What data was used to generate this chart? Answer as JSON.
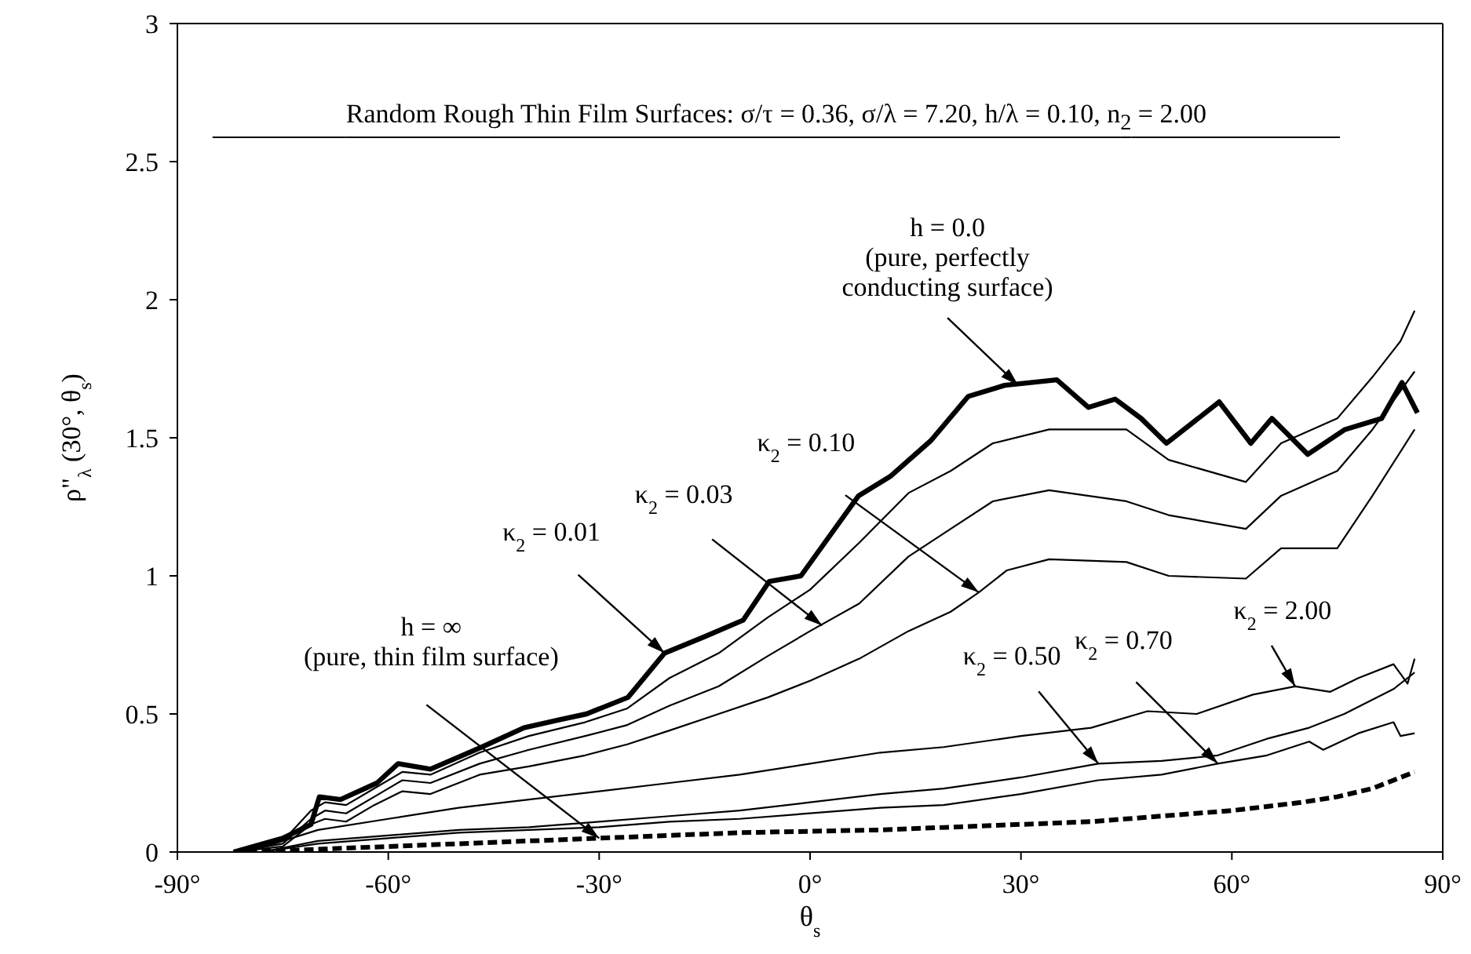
{
  "chart_data": {
    "type": "line",
    "title": "Random Rough Thin Film Surfaces: σ/τ = 0.36, σ/λ = 7.20, h/λ = 0.10, n$_{2}$ = 2.00",
    "xlabel": "θ$_{s}$",
    "ylabel": "ρ\"$_{λ}$ (30°, θ$_{s}$)",
    "xlim": [
      -90,
      90
    ],
    "xticks": [
      {
        "value": -90,
        "label": "-90°"
      },
      {
        "value": -60,
        "label": "-60°"
      },
      {
        "value": -30,
        "label": "-30°"
      },
      {
        "value": 0,
        "label": "0°"
      },
      {
        "value": 30,
        "label": "30°"
      },
      {
        "value": 60,
        "label": "60°"
      },
      {
        "value": 90,
        "label": "90°"
      }
    ],
    "ylim": [
      0,
      3
    ],
    "yticks": [
      0,
      0.5,
      1,
      1.5,
      2,
      2.5,
      3
    ],
    "grid": false,
    "legend": false,
    "marker": "none",
    "series": [
      {
        "color": "#000000",
        "x": [
          -82,
          -75,
          -71,
          -69.8,
          -66.8,
          -61.6,
          -58.6,
          -54,
          -46.7,
          -40.7,
          -35.5,
          -31.8,
          -25.9,
          -20.7,
          -15,
          -9.5,
          -5.8,
          -1.3,
          6.9,
          11.4,
          17.2,
          22.5,
          27.7,
          35.1,
          39.6,
          43.4,
          47.1,
          50.7,
          58.2,
          62.7,
          65.7,
          70.8,
          76.1,
          81.3,
          84.2,
          86.4
        ],
        "values": [
          0,
          0.05,
          0.1,
          0.2,
          0.19,
          0.25,
          0.32,
          0.3,
          0.38,
          0.45,
          0.48,
          0.5,
          0.56,
          0.72,
          0.78,
          0.84,
          0.98,
          1.0,
          1.29,
          1.36,
          1.49,
          1.65,
          1.69,
          1.71,
          1.61,
          1.64,
          1.57,
          1.48,
          1.63,
          1.48,
          1.57,
          1.44,
          1.53,
          1.57,
          1.7,
          1.59
        ]
      },
      {
        "color": "#000000",
        "x": [
          -82,
          -75,
          -71,
          -69,
          -66,
          -62,
          -58,
          -54,
          -47,
          -40,
          -32,
          -26,
          -20,
          -13,
          -6,
          0,
          7,
          14,
          20,
          26,
          34,
          45,
          51,
          62,
          67,
          75,
          80,
          84,
          86
        ],
        "values": [
          0,
          0.04,
          0.15,
          0.18,
          0.17,
          0.23,
          0.29,
          0.28,
          0.36,
          0.42,
          0.47,
          0.52,
          0.63,
          0.72,
          0.85,
          0.95,
          1.12,
          1.3,
          1.38,
          1.48,
          1.53,
          1.53,
          1.42,
          1.34,
          1.48,
          1.57,
          1.72,
          1.85,
          1.96
        ]
      },
      {
        "color": "#000000",
        "x": [
          -82,
          -75,
          -71,
          -69,
          -66,
          -62,
          -58,
          -54,
          -47,
          -40,
          -32,
          -26,
          -20,
          -13,
          -6,
          0,
          7,
          14,
          20,
          26,
          34,
          45,
          51,
          62,
          67,
          75,
          80,
          86
        ],
        "values": [
          0,
          0.03,
          0.12,
          0.15,
          0.14,
          0.2,
          0.26,
          0.25,
          0.32,
          0.37,
          0.42,
          0.46,
          0.53,
          0.6,
          0.71,
          0.8,
          0.9,
          1.07,
          1.17,
          1.27,
          1.31,
          1.27,
          1.22,
          1.17,
          1.29,
          1.38,
          1.53,
          1.74
        ]
      },
      {
        "color": "#000000",
        "x": [
          -82,
          -75,
          -71,
          -69,
          -66,
          -62,
          -58,
          -54,
          -47,
          -40,
          -32,
          -26,
          -20,
          -13,
          -6,
          0,
          7,
          14,
          20,
          24,
          28,
          34,
          45,
          51,
          62,
          67,
          75,
          80,
          86
        ],
        "values": [
          0,
          0.02,
          0.1,
          0.12,
          0.11,
          0.17,
          0.22,
          0.21,
          0.28,
          0.31,
          0.35,
          0.39,
          0.44,
          0.5,
          0.56,
          0.62,
          0.7,
          0.8,
          0.87,
          0.94,
          1.02,
          1.06,
          1.05,
          1.0,
          0.99,
          1.1,
          1.1,
          1.29,
          1.53
        ]
      },
      {
        "color": "#000000",
        "x": [
          -80,
          -75,
          -70,
          -60,
          -50,
          -40,
          -30,
          -20,
          -10,
          0,
          10,
          19,
          30,
          40,
          48,
          55,
          63,
          69,
          74,
          78,
          83,
          85,
          86
        ],
        "values": [
          0,
          0.04,
          0.08,
          0.12,
          0.16,
          0.19,
          0.22,
          0.25,
          0.28,
          0.32,
          0.36,
          0.38,
          0.42,
          0.45,
          0.51,
          0.5,
          0.57,
          0.6,
          0.58,
          0.63,
          0.68,
          0.61,
          0.7
        ]
      },
      {
        "color": "#000000",
        "x": [
          -78,
          -70,
          -60,
          -50,
          -40,
          -30,
          -20,
          -10,
          0,
          10,
          19,
          30,
          41,
          50,
          58,
          65,
          71,
          76,
          83,
          85,
          86
        ],
        "values": [
          0,
          0.04,
          0.06,
          0.08,
          0.09,
          0.11,
          0.13,
          0.15,
          0.18,
          0.21,
          0.23,
          0.27,
          0.32,
          0.33,
          0.35,
          0.41,
          0.45,
          0.5,
          0.59,
          0.63,
          0.65
        ]
      },
      {
        "color": "#000000",
        "x": [
          -78,
          -70,
          -60,
          -50,
          -40,
          -30,
          -20,
          -10,
          0,
          10,
          19,
          30,
          41,
          50,
          58,
          65,
          71,
          73,
          78,
          83,
          84,
          86
        ],
        "values": [
          0,
          0.03,
          0.05,
          0.07,
          0.08,
          0.09,
          0.11,
          0.12,
          0.14,
          0.16,
          0.17,
          0.21,
          0.26,
          0.28,
          0.32,
          0.35,
          0.4,
          0.37,
          0.43,
          0.47,
          0.42,
          0.43
        ]
      },
      {
        "color": "#000000",
        "line_style": "dashed",
        "x": [
          -80,
          -70,
          -60,
          -50,
          -40,
          -30,
          -20,
          -10,
          0,
          10,
          20,
          30,
          40,
          50,
          60,
          70,
          75,
          80,
          83,
          86
        ],
        "values": [
          0,
          0.01,
          0.02,
          0.03,
          0.04,
          0.05,
          0.06,
          0.07,
          0.075,
          0.08,
          0.09,
          0.1,
          0.11,
          0.13,
          0.15,
          0.18,
          0.2,
          0.23,
          0.26,
          0.29
        ]
      }
    ],
    "annotations": [
      {
        "text": "h = 0.0\n(pure, perfectly\nconducting surface)",
        "x": 29.6,
        "y": 1.69
      },
      {
        "text": "κ$_{2}$ = 0.10",
        "x": 24,
        "y": 0.94
      },
      {
        "text": "κ$_{2}$ = 0.03",
        "x": 1.7,
        "y": 0.82
      },
      {
        "text": "κ$_{2}$ = 0.01",
        "x": -20.7,
        "y": 0.72
      },
      {
        "text": "h = ∞\n(pure, thin film surface)",
        "x": -30,
        "y": 0.05
      },
      {
        "text": "κ$_{2}$ = 0.50",
        "x": 41,
        "y": 0.32
      },
      {
        "text": "κ$_{2}$ = 0.70",
        "x": 58,
        "y": 0.32
      },
      {
        "text": "κ$_{2}$ = 2.00",
        "x": 69,
        "y": 0.6
      }
    ]
  }
}
